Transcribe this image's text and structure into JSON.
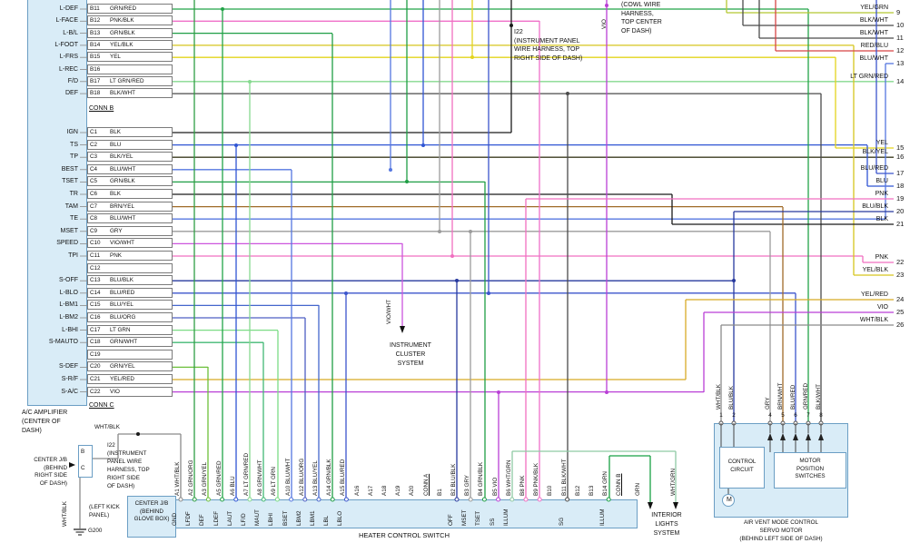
{
  "amplifier": {
    "label_lines": [
      "A/C AMPLIFIER",
      "(CENTER OF",
      "DASH)"
    ],
    "conn_b": "CONN B",
    "conn_c": "CONN C",
    "rows_b": [
      {
        "pin": "B11",
        "wire": "GRN/RED",
        "left": "L-DEF"
      },
      {
        "pin": "B12",
        "wire": "PNK/BLK",
        "left": "L-FACE"
      },
      {
        "pin": "B13",
        "wire": "GRN/BLK",
        "left": "L-B/L"
      },
      {
        "pin": "B14",
        "wire": "YEL/BLK",
        "left": "L-FOOT"
      },
      {
        "pin": "B15",
        "wire": "YEL",
        "left": "L-FRS"
      },
      {
        "pin": "B16",
        "wire": "",
        "left": "L-REC"
      },
      {
        "pin": "B17",
        "wire": "LT GRN/RED",
        "left": "F/D"
      },
      {
        "pin": "B18",
        "wire": "BLK/WHT",
        "left": "DEF"
      }
    ],
    "rows_c": [
      {
        "pin": "C1",
        "wire": "BLK",
        "left": "IGN"
      },
      {
        "pin": "C2",
        "wire": "BLU",
        "left": "TS"
      },
      {
        "pin": "C3",
        "wire": "BLK/YEL",
        "left": "TP"
      },
      {
        "pin": "C4",
        "wire": "BLU/WHT",
        "left": "BEST"
      },
      {
        "pin": "C5",
        "wire": "GRN/BLK",
        "left": "TSET"
      },
      {
        "pin": "C6",
        "wire": "BLK",
        "left": "TR"
      },
      {
        "pin": "C7",
        "wire": "BRN/YEL",
        "left": "TAM"
      },
      {
        "pin": "C8",
        "wire": "BLU/WHT",
        "left": "TE"
      },
      {
        "pin": "C9",
        "wire": "GRY",
        "left": "MSET"
      },
      {
        "pin": "C10",
        "wire": "VIO/WHT",
        "left": "SPEED"
      },
      {
        "pin": "C11",
        "wire": "PNK",
        "left": "TPI"
      },
      {
        "pin": "C12",
        "wire": "",
        "left": ""
      },
      {
        "pin": "C13",
        "wire": "BLU/BLK",
        "left": "S-OFF"
      },
      {
        "pin": "C14",
        "wire": "BLU/RED",
        "left": "L-BLO"
      },
      {
        "pin": "C15",
        "wire": "BLU/YEL",
        "left": "L-BM1"
      },
      {
        "pin": "C16",
        "wire": "BLU/ORG",
        "left": "L-BM2"
      },
      {
        "pin": "C17",
        "wire": "LT GRN",
        "left": "L-BHI"
      },
      {
        "pin": "C18",
        "wire": "GRN/WHT",
        "left": "S-MAUTO"
      },
      {
        "pin": "C19",
        "wire": "",
        "left": ""
      },
      {
        "pin": "C20",
        "wire": "GRN/YEL",
        "left": "S-DEF"
      },
      {
        "pin": "C21",
        "wire": "YEL/RED",
        "left": "S-R/F"
      },
      {
        "pin": "C22",
        "wire": "VIO",
        "left": "S-A/C"
      }
    ]
  },
  "right_exits": [
    {
      "wire": "YEL/GRN",
      "num": "9"
    },
    {
      "wire": "BLK/WHT",
      "num": "10"
    },
    {
      "wire": "BLK/WHT",
      "num": "11"
    },
    {
      "wire": "RED/BLU",
      "num": "12"
    },
    {
      "wire": "BLU/WHT",
      "num": "13"
    },
    {
      "wire": "LT GRN/RED",
      "num": "14"
    },
    {
      "wire": "YEL",
      "num": "15"
    },
    {
      "wire": "BLK/YEL",
      "num": "16"
    },
    {
      "wire": "BLU/RED",
      "num": "17"
    },
    {
      "wire": "BLU",
      "num": "18"
    },
    {
      "wire": "PNK",
      "num": "19"
    },
    {
      "wire": "BLU/BLK",
      "num": "20"
    },
    {
      "wire": "BLK",
      "num": "21"
    },
    {
      "wire": "PNK",
      "num": "22"
    },
    {
      "wire": "YEL/BLK",
      "num": "23"
    },
    {
      "wire": "YEL/RED",
      "num": "24"
    },
    {
      "wire": "VIO",
      "num": "25"
    },
    {
      "wire": "WHT/BLK",
      "num": "26"
    }
  ],
  "heater": {
    "label": "HEATER CONTROL SWITCH",
    "pins": [
      {
        "id": "A1",
        "wire": "WHT/BLK",
        "signal": "GND"
      },
      {
        "id": "A2",
        "wire": "GRN/ORG",
        "signal": "LFDF"
      },
      {
        "id": "A3",
        "wire": "GRN/YEL",
        "signal": "DEF"
      },
      {
        "id": "A5",
        "wire": "GRN/RED",
        "signal": "LDEF"
      },
      {
        "id": "A6",
        "wire": "BLU",
        "signal": "LAUT"
      },
      {
        "id": "A7",
        "wire": "LT GRN/RED",
        "signal": "LF/D"
      },
      {
        "id": "A8",
        "wire": "GRN/WHT",
        "signal": "MAUT"
      },
      {
        "id": "A9",
        "wire": "LT GRN",
        "signal": "LBHI"
      },
      {
        "id": "A10",
        "wire": "BLU/WHT",
        "signal": "BSET"
      },
      {
        "id": "A12",
        "wire": "BLU/ORG",
        "signal": "LBM2"
      },
      {
        "id": "A13",
        "wire": "BLU/YEL",
        "signal": "LBM1"
      },
      {
        "id": "A14",
        "wire": "GRN/BLK",
        "signal": "LBL"
      },
      {
        "id": "A15",
        "wire": "BLU/RED",
        "signal": "LBLO"
      },
      {
        "id": "A16",
        "wire": "",
        "signal": ""
      },
      {
        "id": "A17",
        "wire": "",
        "signal": ""
      },
      {
        "id": "A18",
        "wire": "",
        "signal": ""
      },
      {
        "id": "A19",
        "wire": "",
        "signal": ""
      },
      {
        "id": "A20",
        "wire": "",
        "signal": ""
      },
      {
        "id": "CONN A",
        "wire": "",
        "signal": "",
        "divider": true
      },
      {
        "id": "B1",
        "wire": "",
        "signal": ""
      },
      {
        "id": "B2",
        "wire": "BLU/BLK",
        "signal": "OFF"
      },
      {
        "id": "B3",
        "wire": "GRY",
        "signal": "MSET"
      },
      {
        "id": "B4",
        "wire": "GRN/BLK",
        "signal": "TSET"
      },
      {
        "id": "B5",
        "wire": "VIO",
        "signal": "SS"
      },
      {
        "id": "B6",
        "wire": "WHT/GRN",
        "signal": "ILLUM"
      },
      {
        "id": "B8",
        "wire": "PNK",
        "signal": ""
      },
      {
        "id": "B9",
        "wire": "PNK/BLK",
        "signal": ""
      },
      {
        "id": "B10",
        "wire": "",
        "signal": ""
      },
      {
        "id": "B11",
        "wire": "BLK/WHT",
        "signal": "SG"
      },
      {
        "id": "B12",
        "wire": "",
        "signal": ""
      },
      {
        "id": "B13",
        "wire": "",
        "signal": ""
      },
      {
        "id": "B14",
        "wire": "GRN",
        "signal": "ILLUM"
      },
      {
        "id": "CONN B",
        "wire": "",
        "signal": "",
        "divider": true
      }
    ]
  },
  "servo": {
    "label_lines": [
      "AIR VENT MODE CONTROL",
      "SERVO MOTOR",
      "(BEHIND LEFT SIDE OF DASH)"
    ],
    "control_lines": [
      "CONTROL",
      "CIRCUIT"
    ],
    "switch_lines": [
      "MOTOR",
      "POSITION",
      "SWITCHES"
    ],
    "motor": "M",
    "pins": [
      {
        "num": "1",
        "wire": "WHT/BLK"
      },
      {
        "num": "2",
        "wire": "BLU/BLK"
      },
      {
        "num": "4",
        "wire": "GRY"
      },
      {
        "num": "5",
        "wire": "BRN/WHT"
      },
      {
        "num": "6",
        "wire": "BLU/RED"
      },
      {
        "num": "7",
        "wire": "GRN/RED"
      },
      {
        "num": "8",
        "wire": "BLK/WHT"
      }
    ]
  },
  "annotations": {
    "cowl": [
      "(COWL WIRE",
      "HARNESS,",
      "TOP CENTER",
      "OF DASH)"
    ],
    "cowl_wire": "VIO",
    "i22_top": [
      "I22",
      "(INSTRUMENT PANEL",
      "WIRE HARNESS, TOP",
      "RIGHT SIDE OF DASH)"
    ],
    "i22_left": [
      "I22",
      "(INSTRUMENT",
      "PANEL WIRE",
      "HARNESS, TOP",
      "RIGHT SIDE",
      "OF DASH)"
    ],
    "instrument_cluster": [
      "INSTRUMENT",
      "CLUSTER",
      "SYSTEM"
    ],
    "instrument_cluster_wire": "VIO/WHT",
    "interior_lights": [
      "INTERIOR",
      "LIGHTS",
      "SYSTEM"
    ],
    "interior_wire_grn": "GRN",
    "interior_wire_whtgrn": "WHT/GRN",
    "center_jb_right": [
      "CENTER J/B",
      "(BEHIND",
      "RIGHT SIDE",
      "OF DASH)"
    ],
    "center_jb_glove": [
      "CENTER J/B",
      "(BEHIND",
      "GLOVE BOX)"
    ],
    "left_kick": [
      "(LEFT KICK",
      "PANEL)"
    ],
    "ground": "G200",
    "jb_wire": "WHT/BLK",
    "jb_wire_vertical": "WHT/BLK",
    "jb_pin_b": "B",
    "jb_pin_c": "C"
  },
  "colors": {
    "GRN/RED": "#22a348",
    "PNK/BLK": "#ef6fc9",
    "GRN/BLK": "#1f9e45",
    "YEL/BLK": "#d6c51e",
    "YEL": "#e3d41c",
    "LT GRN/RED": "#86d98f",
    "BLK/WHT": "#4a4a4a",
    "BLK": "#1a1a1a",
    "BLU": "#2f55d4",
    "BLK/YEL": "#3c3c20",
    "BLU/WHT": "#5577e0",
    "GRY": "#9b9b9b",
    "VIO/WHT": "#cc55dd",
    "PNK": "#f06fc0",
    "BLU/BLK": "#27399e",
    "BLU/RED": "#3b55cc",
    "BLU/YEL": "#4466cc",
    "BLU/ORG": "#4d5fc4",
    "LT GRN": "#7bdc85",
    "GRN/WHT": "#43b875",
    "GRN/YEL": "#6cbf3a",
    "YEL/RED": "#d8ab25",
    "VIO": "#b93fd6",
    "BRN/YEL": "#a06a28",
    "GRN/ORG": "#2f9e44",
    "WHT/BLK": "#8a8a8a",
    "WHT/GRN": "#8fc9a5",
    "GRN": "#18a043",
    "RED/BLU": "#d64545",
    "YEL/GRN": "#b5c832",
    "BRN/WHT": "#a87840"
  }
}
